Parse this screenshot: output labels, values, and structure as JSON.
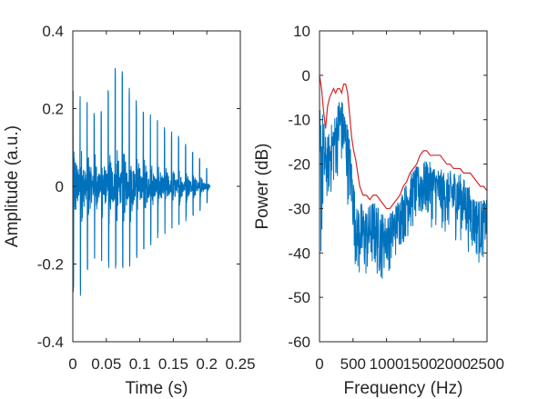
{
  "chart_data": [
    {
      "type": "line",
      "xlabel": "Time (s)",
      "ylabel": "Amplitude (a.u.)",
      "xlim": [
        0,
        0.25
      ],
      "ylim": [
        -0.4,
        0.4
      ],
      "xticks": [
        "0",
        "0.05",
        "0.1",
        "0.15",
        "0.2",
        "0.25"
      ],
      "yticks": [
        "-0.4",
        "-0.2",
        "0",
        "0.2",
        "0.4"
      ],
      "grid": false,
      "box": true,
      "series": [
        {
          "color": "#0072bd",
          "description_of_signal": "",
          "x_range": [
            0,
            0.205
          ],
          "pulse_period_s": 0.0105,
          "peak_envelope": [
            [
              0.0,
              0.26
            ],
            [
              0.01,
              0.25
            ],
            [
              0.02,
              0.22
            ],
            [
              0.03,
              0.2
            ],
            [
              0.04,
              0.19
            ],
            [
              0.05,
              0.24
            ],
            [
              0.06,
              0.3
            ],
            [
              0.065,
              0.335
            ],
            [
              0.08,
              0.27
            ],
            [
              0.1,
              0.22
            ],
            [
              0.12,
              0.18
            ],
            [
              0.14,
              0.15
            ],
            [
              0.16,
              0.13
            ],
            [
              0.18,
              0.1
            ],
            [
              0.2,
              0.05
            ],
            [
              0.205,
              0.0
            ]
          ],
          "trough_envelope": [
            [
              0.0,
              -0.27
            ],
            [
              0.01,
              -0.31
            ],
            [
              0.02,
              -0.24
            ],
            [
              0.04,
              -0.2
            ],
            [
              0.06,
              -0.22
            ],
            [
              0.08,
              -0.22
            ],
            [
              0.1,
              -0.18
            ],
            [
              0.12,
              -0.15
            ],
            [
              0.14,
              -0.12
            ],
            [
              0.16,
              -0.1
            ],
            [
              0.18,
              -0.08
            ],
            [
              0.2,
              -0.05
            ],
            [
              0.205,
              0.0
            ]
          ]
        }
      ]
    },
    {
      "type": "line",
      "xlabel": "Frequency (Hz)",
      "ylabel": "Power (dB)",
      "xlim": [
        0,
        2500
      ],
      "ylim": [
        -60,
        10
      ],
      "xticks": [
        "0",
        "500",
        "1000",
        "1500",
        "2000",
        "2500"
      ],
      "yticks": [
        "-60",
        "-50",
        "-40",
        "-30",
        "-20",
        "-10",
        "0",
        "10"
      ],
      "grid": false,
      "box": true,
      "series": [
        {
          "color": "#0072bd",
          "x_range": [
            0,
            2500
          ],
          "upper_envelope": [
            [
              0,
              -5
            ],
            [
              50,
              -8
            ],
            [
              100,
              -15
            ],
            [
              150,
              -12
            ],
            [
              200,
              -10
            ],
            [
              250,
              -8
            ],
            [
              300,
              -4
            ],
            [
              350,
              -6
            ],
            [
              400,
              -9
            ],
            [
              450,
              -14
            ],
            [
              500,
              -22
            ],
            [
              550,
              -30
            ],
            [
              600,
              -28
            ],
            [
              700,
              -30
            ],
            [
              800,
              -28
            ],
            [
              900,
              -30
            ],
            [
              1000,
              -32
            ],
            [
              1100,
              -30
            ],
            [
              1200,
              -27
            ],
            [
              1300,
              -24
            ],
            [
              1400,
              -21
            ],
            [
              1500,
              -20
            ],
            [
              1600,
              -19
            ],
            [
              1700,
              -20
            ],
            [
              1800,
              -21
            ],
            [
              1900,
              -22
            ],
            [
              2000,
              -21
            ],
            [
              2100,
              -22
            ],
            [
              2200,
              -24
            ],
            [
              2300,
              -27
            ],
            [
              2400,
              -28
            ],
            [
              2500,
              -28
            ]
          ],
          "lower_envelope": [
            [
              0,
              -54
            ],
            [
              50,
              -40
            ],
            [
              100,
              -30
            ],
            [
              150,
              -30
            ],
            [
              200,
              -28
            ],
            [
              250,
              -25
            ],
            [
              300,
              -22
            ],
            [
              350,
              -24
            ],
            [
              400,
              -28
            ],
            [
              450,
              -32
            ],
            [
              500,
              -38
            ],
            [
              550,
              -46
            ],
            [
              600,
              -50
            ],
            [
              700,
              -48
            ],
            [
              800,
              -46
            ],
            [
              900,
              -48
            ],
            [
              1000,
              -45
            ],
            [
              1100,
              -44
            ],
            [
              1200,
              -40
            ],
            [
              1300,
              -38
            ],
            [
              1400,
              -36
            ],
            [
              1500,
              -35
            ],
            [
              1600,
              -34
            ],
            [
              1700,
              -35
            ],
            [
              1800,
              -36
            ],
            [
              1900,
              -37
            ],
            [
              2000,
              -38
            ],
            [
              2100,
              -38
            ],
            [
              2200,
              -40
            ],
            [
              2300,
              -42
            ],
            [
              2400,
              -44
            ],
            [
              2500,
              -40
            ]
          ]
        },
        {
          "color": "#d62728",
          "x": [
            0,
            30,
            60,
            90,
            120,
            150,
            180,
            210,
            240,
            270,
            300,
            330,
            360,
            390,
            420,
            450,
            480,
            510,
            540,
            570,
            600,
            650,
            700,
            750,
            800,
            850,
            900,
            950,
            1000,
            1050,
            1100,
            1150,
            1200,
            1250,
            1300,
            1350,
            1400,
            1450,
            1500,
            1550,
            1600,
            1650,
            1700,
            1750,
            1800,
            1850,
            1900,
            1950,
            2000,
            2050,
            2100,
            2150,
            2200,
            2250,
            2300,
            2350,
            2400,
            2450,
            2500
          ],
          "y": [
            0,
            -3,
            -8,
            -12,
            -7,
            -5,
            -4,
            -3,
            -4,
            -3,
            -3,
            -4,
            -2,
            -2,
            -4,
            -9,
            -14,
            -17,
            -19,
            -22,
            -25,
            -27,
            -27,
            -28,
            -27,
            -27,
            -28,
            -29,
            -30,
            -30,
            -29,
            -28,
            -27,
            -25,
            -24,
            -22,
            -21,
            -20,
            -18,
            -17,
            -17,
            -18,
            -18,
            -18,
            -18,
            -19,
            -20,
            -20,
            -21,
            -21,
            -21,
            -22,
            -22,
            -22,
            -23,
            -24,
            -25,
            -25,
            -26
          ]
        }
      ]
    }
  ]
}
